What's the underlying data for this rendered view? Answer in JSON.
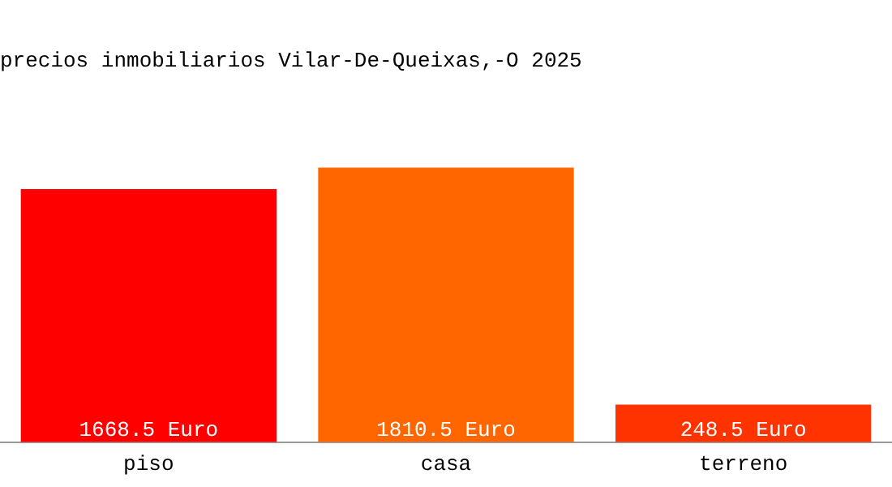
{
  "chart_data": {
    "type": "bar",
    "title": "precios inmobiliarios Vilar-De-Queixas,-O 2025",
    "categories": [
      "piso",
      "casa",
      "terreno"
    ],
    "values": [
      1668.5,
      1810.5,
      248.5
    ],
    "colors": [
      "#ff0000",
      "#ff6600",
      "#ff3300"
    ],
    "value_labels": [
      "1668.5 Euro",
      "1810.5 Euro",
      "248.5 Euro"
    ],
    "grid": false,
    "legend": false
  }
}
